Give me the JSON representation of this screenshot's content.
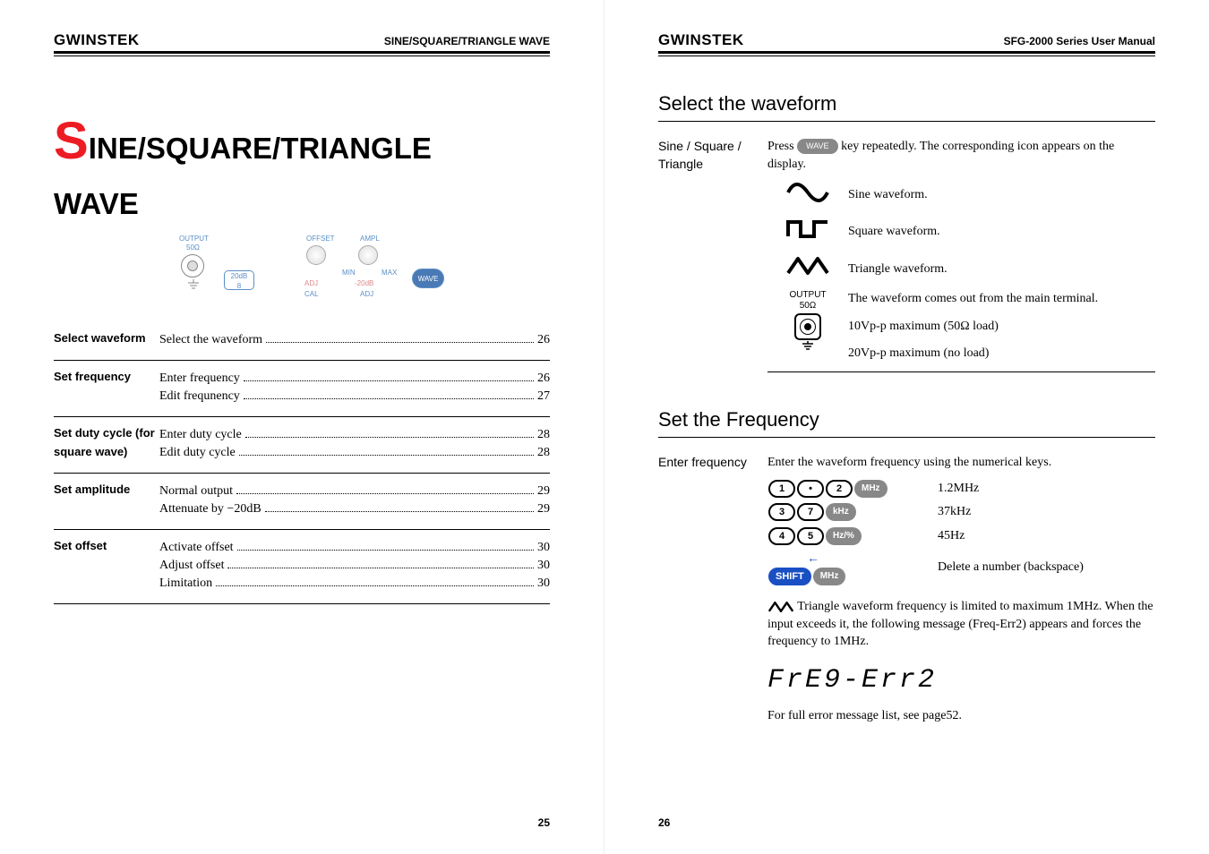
{
  "brand": "GWINSTEK",
  "left": {
    "header_right": "SINE/SQUARE/TRIANGLE WAVE",
    "title_cap": "S",
    "title_rest": "INE/SQUARE/TRIANGLE",
    "title_line2": "WAVE",
    "panel": {
      "output_label": "OUTPUT",
      "output_ohm": "50Ω",
      "btn_20db": "20dB",
      "btn_8": "8",
      "offset": "OFFSET",
      "ampl": "AMPL",
      "adj": "ADJ",
      "cal": "CAL",
      "min": "MIN",
      "max": "MAX",
      "m20db": "-20dB",
      "adj2": "ADJ",
      "wave": "WAVE"
    },
    "toc": [
      {
        "label": "Select waveform",
        "items": [
          {
            "t": "Select the waveform",
            "p": "26"
          }
        ]
      },
      {
        "label": "Set frequency",
        "items": [
          {
            "t": "Enter frequency",
            "p": "26"
          },
          {
            "t": "Edit frequnency",
            "p": "27"
          }
        ]
      },
      {
        "label": "Set duty cycle (for square wave)",
        "items": [
          {
            "t": "Enter duty cycle",
            "p": "28"
          },
          {
            "t": "Edit duty cycle",
            "p": "28"
          }
        ]
      },
      {
        "label": "Set amplitude",
        "items": [
          {
            "t": "Normal output",
            "p": "29"
          },
          {
            "t": "Attenuate by −20dB",
            "p": "29"
          }
        ]
      },
      {
        "label": "Set offset",
        "items": [
          {
            "t": "Activate offset",
            "p": "30"
          },
          {
            "t": "Adjust offset",
            "p": "30"
          },
          {
            "t": "Limitation",
            "p": "30"
          }
        ]
      }
    ],
    "page_num": "25"
  },
  "right": {
    "header_right": "SFG-2000 Series User Manual",
    "sec1_title": "Select the waveform",
    "block1_label": "Sine / Square / Triangle",
    "block1_text_a": "Press ",
    "block1_text_b": " key repeatedly. The corresponding icon appears on the display.",
    "wave_key": "WAVE",
    "waves": [
      {
        "desc": "Sine waveform."
      },
      {
        "desc": "Square waveform."
      },
      {
        "desc": "Triangle waveform."
      }
    ],
    "output_label": "OUTPUT",
    "output_ohm": "50Ω",
    "output_desc1": "The waveform comes out from the main terminal.",
    "output_desc2": "10Vp-p maximum (50Ω load)",
    "output_desc3": "20Vp-p maximum (no load)",
    "sec2_title": "Set the Frequency",
    "block2_label": "Enter frequency",
    "block2_intro": "Enter the waveform frequency using the numerical keys.",
    "examples": [
      {
        "keys": [
          "1",
          "•",
          "2"
        ],
        "unit": "MHz",
        "unit_style": "gray",
        "result": "1.2MHz"
      },
      {
        "keys": [
          "3",
          "7"
        ],
        "unit": "kHz",
        "unit_style": "gray",
        "result": "37kHz"
      },
      {
        "keys": [
          "4",
          "5"
        ],
        "unit": "Hz/%",
        "unit_style": "gray",
        "result": "45Hz"
      }
    ],
    "shift_key": "SHIFT",
    "backspace_unit": "MHz",
    "backspace_result": "Delete a number (backspace)",
    "note_text": "Triangle waveform frequency is limited to maximum 1MHz. When the input exceeds it, the following message (Freq-Err2) appears and forces the frequency to 1MHz.",
    "err_display": "FrE9-Err2",
    "footer_note": "For full error message list, see page52.",
    "page_num": "26"
  },
  "colors": {
    "accent_red": "#ed1c24",
    "key_blue": "#1a4fc4"
  }
}
